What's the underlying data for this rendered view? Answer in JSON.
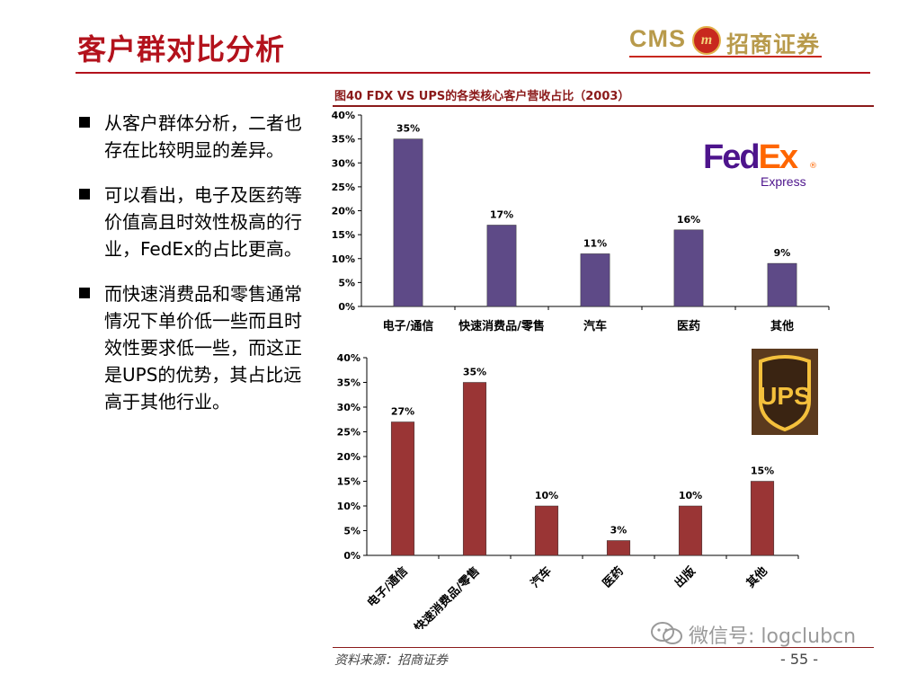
{
  "slide": {
    "title": "客户群对比分析",
    "page_number": "- 55 -",
    "source": "资料来源：招商证券"
  },
  "brand": {
    "cms": "CMS",
    "emblem": "m",
    "name": "招商证券",
    "color_red": "#b3121c",
    "color_gold": "#b89a4b"
  },
  "bullets": [
    "从客户群体分析，二者也存在比较明显的差异。",
    "可以看出，电子及医药等价值高且时效性极高的行业，FedEx的占比更高。",
    "而快速消费品和零售通常情况下单价低一些而且时效性要求低一些，而这正是UPS的优势，其占比远高于其他行业。"
  ],
  "figure_caption": "图40 FDX VS UPS的各类核心客户营收占比（2003）",
  "fedex_logo": {
    "fed": "Fed",
    "ex": "Ex",
    "registered": "®",
    "express": "Express"
  },
  "ups_logo": {
    "text": "UPS"
  },
  "watermark": {
    "text": "微信号: logclubcn",
    "icon": "wechat-icon"
  },
  "chart_data": [
    {
      "type": "bar",
      "categories": [
        "电子/通信",
        "快速消费品/零售",
        "汽车",
        "医药",
        "其他"
      ],
      "values": [
        35,
        17,
        11,
        16,
        9
      ],
      "value_labels": [
        "35%",
        "17%",
        "11%",
        "16%",
        "9%"
      ],
      "ylim": [
        0,
        40
      ],
      "yticks": [
        "0%",
        "5%",
        "10%",
        "15%",
        "20%",
        "25%",
        "30%",
        "35%",
        "40%"
      ],
      "bar_color": "#5e4a87",
      "grid": false
    },
    {
      "type": "bar",
      "categories": [
        "电子/通信",
        "快速消费品/零售",
        "汽车",
        "医药",
        "出版",
        "其他"
      ],
      "values": [
        27,
        35,
        10,
        3,
        10,
        15
      ],
      "value_labels": [
        "27%",
        "35%",
        "10%",
        "3%",
        "10%",
        "15%"
      ],
      "ylim": [
        0,
        40
      ],
      "yticks": [
        "0%",
        "5%",
        "10%",
        "15%",
        "20%",
        "25%",
        "30%",
        "35%",
        "40%"
      ],
      "bar_color": "#9a3535",
      "rotated_labels": true,
      "grid": false
    }
  ]
}
